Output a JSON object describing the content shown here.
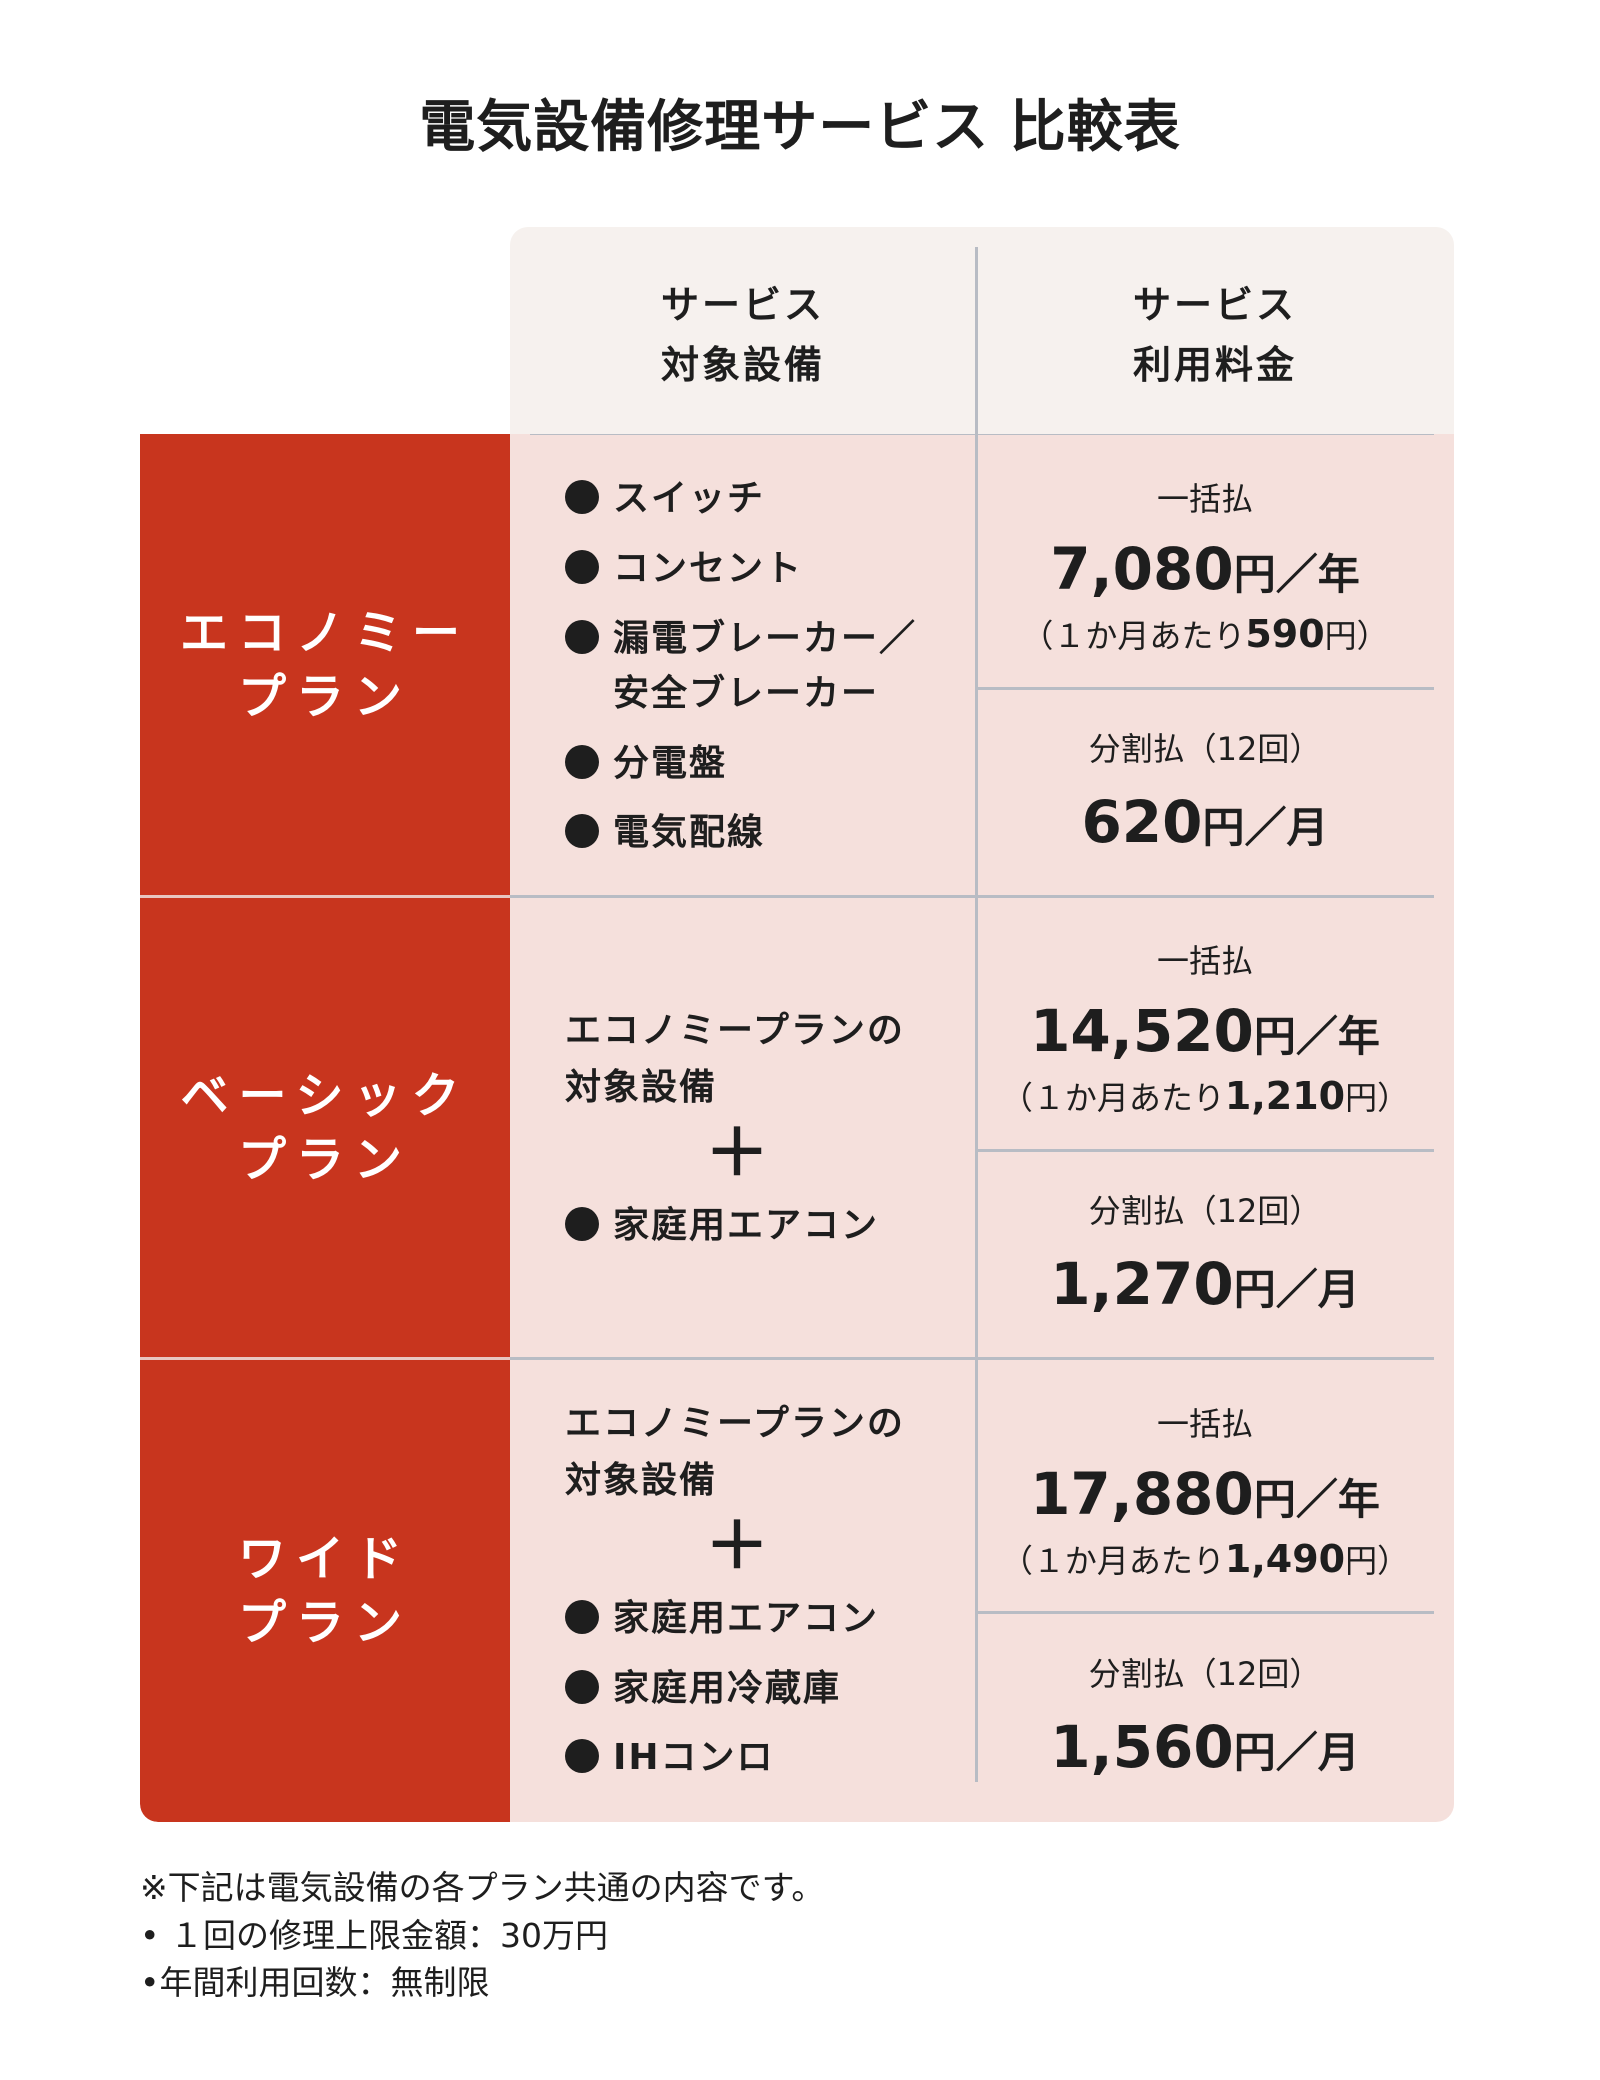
{
  "title": "電気設備修理サービス 比較表",
  "header": {
    "col1_line1": "サービス",
    "col1_line2": "対象設備",
    "col2_line1": "サービス",
    "col2_line2": "利用料金"
  },
  "colors": {
    "plan_bg": "#c8351e",
    "body_bg": "#f5e0dc",
    "header_bg": "#f6f1ee",
    "divider": "#b8bcc4"
  },
  "plans": [
    {
      "name_line1": "エコノミー",
      "name_line2": "プラン",
      "items": [
        "スイッチ",
        "コンセント",
        "漏電ブレーカー／",
        "安全ブレーカー",
        "分電盤",
        "電気配線"
      ],
      "lump_label": "一括払",
      "lump_price": "7,080",
      "lump_unit": "円／年",
      "monthly_prefix": "（１か月あたり",
      "monthly_value": "590",
      "monthly_suffix": "円）",
      "split_label": "分割払（12回）",
      "split_price": "620",
      "split_unit": "円／月"
    },
    {
      "name_line1": "ベーシック",
      "name_line2": "プラン",
      "base_line1": "エコノミープランの",
      "base_line2": "対象設備",
      "plus": "＋",
      "items": [
        "家庭用エアコン"
      ],
      "lump_label": "一括払",
      "lump_price": "14,520",
      "lump_unit": "円／年",
      "monthly_prefix": "（１か月あたり",
      "monthly_value": "1,210",
      "monthly_suffix": "円）",
      "split_label": "分割払（12回）",
      "split_price": "1,270",
      "split_unit": "円／月"
    },
    {
      "name_line1": "ワイド",
      "name_line2": "プラン",
      "base_line1": "エコノミープランの",
      "base_line2": "対象設備",
      "plus": "＋",
      "items": [
        "家庭用エアコン",
        "家庭用冷蔵庫",
        "IHコンロ"
      ],
      "lump_label": "一括払",
      "lump_price": "17,880",
      "lump_unit": "円／年",
      "monthly_prefix": "（１か月あたり",
      "monthly_value": "1,490",
      "monthly_suffix": "円）",
      "split_label": "分割払（12回）",
      "split_price": "1,560",
      "split_unit": "円／月"
    }
  ],
  "notes": {
    "intro": "※下記は電気設備の各プラン共通の内容です。",
    "items": [
      "• １回の修理上限金額：30万円",
      "•年間利用回数：無制限"
    ]
  }
}
